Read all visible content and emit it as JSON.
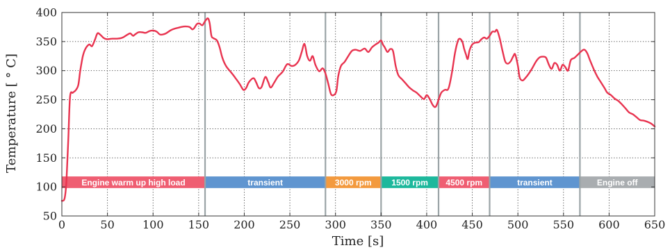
{
  "chart_data": {
    "type": "line",
    "title": "",
    "xlabel": "Time [s]",
    "ylabel": "Temperature [ ° C]",
    "xlim": [
      0,
      650
    ],
    "ylim": [
      50,
      400
    ],
    "xticks": [
      0,
      50,
      100,
      150,
      200,
      250,
      300,
      350,
      400,
      450,
      500,
      550,
      600,
      650
    ],
    "yticks": [
      50,
      100,
      150,
      200,
      250,
      300,
      350,
      400
    ],
    "grid": "dotted",
    "series": [
      {
        "color": "#e8334f",
        "points": [
          [
            0,
            76
          ],
          [
            3,
            80
          ],
          [
            5,
            110
          ],
          [
            7,
            180
          ],
          [
            9,
            255
          ],
          [
            12,
            262
          ],
          [
            15,
            266
          ],
          [
            18,
            275
          ],
          [
            20,
            298
          ],
          [
            23,
            325
          ],
          [
            26,
            338
          ],
          [
            30,
            345
          ],
          [
            33,
            342
          ],
          [
            36,
            352
          ],
          [
            39,
            364
          ],
          [
            42,
            362
          ],
          [
            46,
            356
          ],
          [
            50,
            354
          ],
          [
            55,
            355
          ],
          [
            60,
            355
          ],
          [
            65,
            356
          ],
          [
            68,
            358
          ],
          [
            72,
            362
          ],
          [
            75,
            364
          ],
          [
            78,
            360
          ],
          [
            80,
            362
          ],
          [
            84,
            366
          ],
          [
            88,
            366
          ],
          [
            92,
            365
          ],
          [
            96,
            368
          ],
          [
            100,
            369
          ],
          [
            104,
            367
          ],
          [
            108,
            362
          ],
          [
            114,
            364
          ],
          [
            120,
            370
          ],
          [
            128,
            374
          ],
          [
            135,
            376
          ],
          [
            140,
            375
          ],
          [
            143,
            371
          ],
          [
            145,
            373
          ],
          [
            148,
            380
          ],
          [
            151,
            381
          ],
          [
            154,
            378
          ],
          [
            157,
            385
          ],
          [
            160,
            390
          ],
          [
            162,
            382
          ],
          [
            164,
            360
          ],
          [
            166,
            356
          ],
          [
            170,
            352
          ],
          [
            173,
            340
          ],
          [
            176,
            322
          ],
          [
            180,
            308
          ],
          [
            185,
            298
          ],
          [
            190,
            288
          ],
          [
            195,
            277
          ],
          [
            199,
            267
          ],
          [
            202,
            270
          ],
          [
            205,
            280
          ],
          [
            210,
            287
          ],
          [
            213,
            280
          ],
          [
            216,
            270
          ],
          [
            219,
            272
          ],
          [
            223,
            289
          ],
          [
            226,
            281
          ],
          [
            229,
            271
          ],
          [
            233,
            280
          ],
          [
            237,
            290
          ],
          [
            242,
            298
          ],
          [
            247,
            311
          ],
          [
            252,
            308
          ],
          [
            256,
            310
          ],
          [
            260,
            318
          ],
          [
            263,
            332
          ],
          [
            266,
            346
          ],
          [
            269,
            325
          ],
          [
            272,
            317
          ],
          [
            275,
            325
          ],
          [
            278,
            310
          ],
          [
            282,
            299
          ],
          [
            286,
            304
          ],
          [
            289,
            295
          ],
          [
            292,
            278
          ],
          [
            295,
            260
          ],
          [
            298,
            258
          ],
          [
            301,
            265
          ],
          [
            303,
            290
          ],
          [
            306,
            308
          ],
          [
            310,
            315
          ],
          [
            314,
            325
          ],
          [
            318,
            334
          ],
          [
            322,
            336
          ],
          [
            327,
            334
          ],
          [
            332,
            338
          ],
          [
            336,
            332
          ],
          [
            340,
            340
          ],
          [
            344,
            345
          ],
          [
            347,
            348
          ],
          [
            350,
            352
          ],
          [
            352,
            345
          ],
          [
            354,
            340
          ],
          [
            357,
            332
          ],
          [
            360,
            337
          ],
          [
            363,
            334
          ],
          [
            366,
            308
          ],
          [
            369,
            292
          ],
          [
            373,
            285
          ],
          [
            377,
            278
          ],
          [
            381,
            271
          ],
          [
            385,
            266
          ],
          [
            389,
            262
          ],
          [
            393,
            256
          ],
          [
            397,
            251
          ],
          [
            400,
            258
          ],
          [
            403,
            252
          ],
          [
            407,
            240
          ],
          [
            410,
            238
          ],
          [
            413,
            250
          ],
          [
            416,
            262
          ],
          [
            420,
            267
          ],
          [
            423,
            267
          ],
          [
            425,
            275
          ],
          [
            428,
            300
          ],
          [
            431,
            330
          ],
          [
            434,
            350
          ],
          [
            436,
            355
          ],
          [
            439,
            350
          ],
          [
            441,
            338
          ],
          [
            443,
            328
          ],
          [
            445,
            320
          ],
          [
            447,
            335
          ],
          [
            450,
            345
          ],
          [
            453,
            348
          ],
          [
            457,
            349
          ],
          [
            460,
            354
          ],
          [
            463,
            357
          ],
          [
            466,
            355
          ],
          [
            469,
            360
          ],
          [
            472,
            367
          ],
          [
            475,
            367
          ],
          [
            477,
            370
          ],
          [
            480,
            356
          ],
          [
            483,
            335
          ],
          [
            486,
            316
          ],
          [
            489,
            312
          ],
          [
            492,
            316
          ],
          [
            495,
            325
          ],
          [
            497,
            328
          ],
          [
            500,
            308
          ],
          [
            502,
            288
          ],
          [
            505,
            283
          ],
          [
            508,
            287
          ],
          [
            512,
            295
          ],
          [
            516,
            305
          ],
          [
            520,
            316
          ],
          [
            524,
            323
          ],
          [
            528,
            324
          ],
          [
            531,
            322
          ],
          [
            534,
            310
          ],
          [
            537,
            303
          ],
          [
            540,
            313
          ],
          [
            543,
            310
          ],
          [
            546,
            300
          ],
          [
            549,
            310
          ],
          [
            552,
            306
          ],
          [
            555,
            300
          ],
          [
            558,
            318
          ],
          [
            562,
            322
          ],
          [
            566,
            328
          ],
          [
            570,
            334
          ],
          [
            573,
            336
          ],
          [
            576,
            330
          ],
          [
            579,
            318
          ],
          [
            583,
            303
          ],
          [
            587,
            290
          ],
          [
            591,
            280
          ],
          [
            595,
            270
          ],
          [
            598,
            262
          ],
          [
            602,
            258
          ],
          [
            606,
            252
          ],
          [
            610,
            248
          ],
          [
            614,
            242
          ],
          [
            618,
            235
          ],
          [
            622,
            228
          ],
          [
            626,
            225
          ],
          [
            630,
            220
          ],
          [
            634,
            215
          ],
          [
            638,
            214
          ],
          [
            642,
            212
          ],
          [
            646,
            209
          ],
          [
            650,
            204
          ]
        ]
      }
    ],
    "phase_band": {
      "ymin": 98,
      "ymax": 118
    },
    "phase_boundaries": [
      157,
      289,
      350,
      413,
      469,
      568
    ],
    "phases": [
      {
        "label": "Engine warm up high load",
        "start": 0,
        "end": 157,
        "color": "#ef5e72"
      },
      {
        "label": "transient",
        "start": 157,
        "end": 289,
        "color": "#5f95d0"
      },
      {
        "label": "3000 rpm",
        "start": 289,
        "end": 350,
        "color": "#f39a3e"
      },
      {
        "label": "1500 rpm",
        "start": 350,
        "end": 413,
        "color": "#1db89c"
      },
      {
        "label": "4500 rpm",
        "start": 413,
        "end": 469,
        "color": "#ef5e72"
      },
      {
        "label": "transient",
        "start": 469,
        "end": 568,
        "color": "#5f95d0"
      },
      {
        "label": "Engine off",
        "start": 568,
        "end": 650,
        "color": "#a9adb0"
      }
    ]
  }
}
